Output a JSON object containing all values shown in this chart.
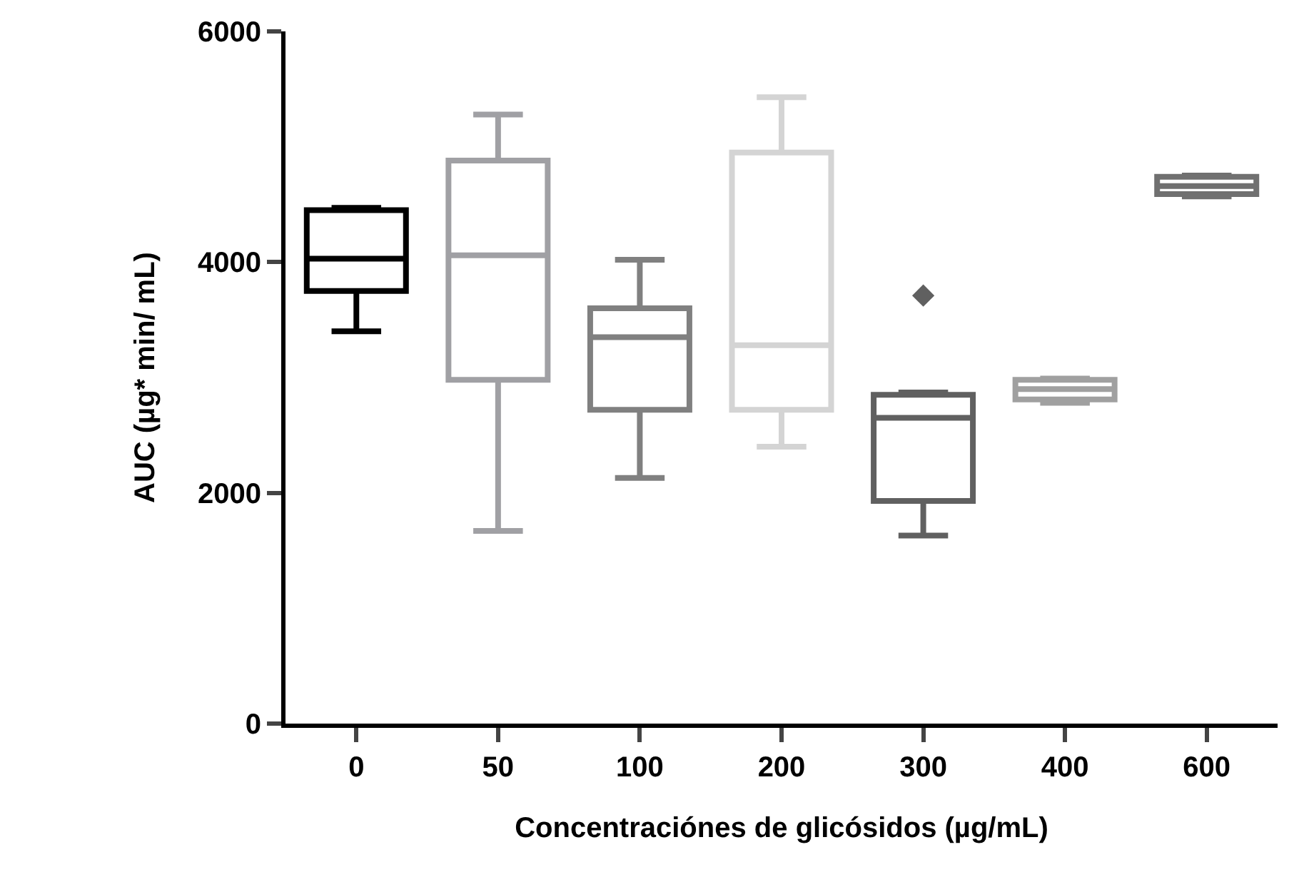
{
  "chart_data": {
    "type": "box",
    "xlabel": "Concentraciónes de glicósidos (µg/mL)",
    "ylabel": "AUC (µg* min/ mL)",
    "categories": [
      "0",
      "50",
      "100",
      "200",
      "300",
      "400",
      "600"
    ],
    "colors": [
      "#000000",
      "#a0a0a4",
      "#808080",
      "#d4d4d4",
      "#606060",
      "#a0a0a0",
      "#707070"
    ],
    "boxes": [
      {
        "low": 3400,
        "q1": 3750,
        "median": 4030,
        "q3": 4450,
        "high": 4470
      },
      {
        "low": 1670,
        "q1": 2980,
        "median": 4060,
        "q3": 4880,
        "high": 5280
      },
      {
        "low": 2130,
        "q1": 2720,
        "median": 3350,
        "q3": 3600,
        "high": 4020
      },
      {
        "low": 2400,
        "q1": 2720,
        "median": 3280,
        "q3": 4950,
        "high": 5430
      },
      {
        "low": 1630,
        "q1": 1930,
        "median": 2650,
        "q3": 2850,
        "high": 2870,
        "outliers": [
          3710
        ]
      },
      {
        "low": 2780,
        "q1": 2810,
        "median": 2900,
        "q3": 2980,
        "high": 2990
      },
      {
        "low": 4570,
        "q1": 4590,
        "median": 4660,
        "q3": 4740,
        "high": 4750
      }
    ],
    "ylim": [
      0,
      6000
    ],
    "yticks": [
      0,
      2000,
      4000,
      6000
    ]
  }
}
